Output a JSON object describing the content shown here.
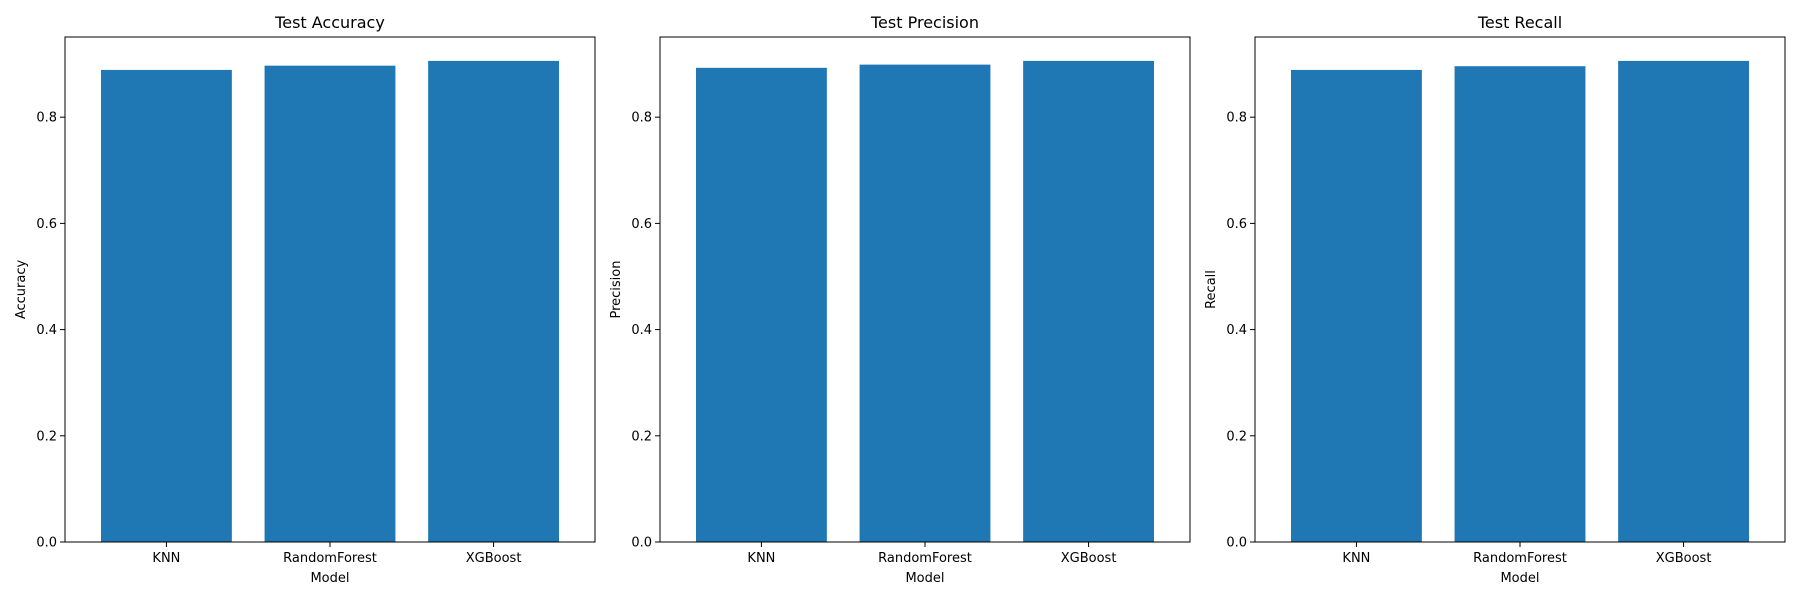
{
  "chart_data": [
    {
      "type": "bar",
      "title": "Test Accuracy",
      "xlabel": "Model",
      "ylabel": "Accuracy",
      "categories": [
        "KNN",
        "RandomForest",
        "XGBoost"
      ],
      "values": [
        0.889,
        0.897,
        0.906
      ],
      "ylim": [
        0,
        0.951
      ],
      "yticks": [
        "0.0",
        "0.2",
        "0.4",
        "0.6",
        "0.8"
      ],
      "color": "#1f77b4",
      "grid": false
    },
    {
      "type": "bar",
      "title": "Test Precision",
      "xlabel": "Model",
      "ylabel": "Precision",
      "categories": [
        "KNN",
        "RandomForest",
        "XGBoost"
      ],
      "values": [
        0.893,
        0.899,
        0.906
      ],
      "ylim": [
        0,
        0.951
      ],
      "yticks": [
        "0.0",
        "0.2",
        "0.4",
        "0.6",
        "0.8"
      ],
      "color": "#1f77b4",
      "grid": false
    },
    {
      "type": "bar",
      "title": "Test Recall",
      "xlabel": "Model",
      "ylabel": "Recall",
      "categories": [
        "KNN",
        "RandomForest",
        "XGBoost"
      ],
      "values": [
        0.889,
        0.896,
        0.906
      ],
      "ylim": [
        0,
        0.951
      ],
      "yticks": [
        "0.0",
        "0.2",
        "0.4",
        "0.6",
        "0.8"
      ],
      "color": "#1f77b4",
      "grid": false
    }
  ]
}
